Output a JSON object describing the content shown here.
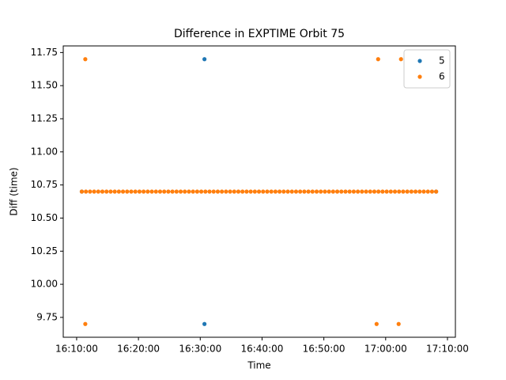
{
  "chart_data": {
    "type": "scatter",
    "title": "Difference in EXPTIME Orbit 75",
    "x_label": "Time",
    "y_label": "Diff (time)",
    "xlim": [
      "16:07:50",
      "17:11:17"
    ],
    "xticks": [
      "16:10:00",
      "16:20:00",
      "16:30:00",
      "16:40:00",
      "16:50:00",
      "17:00:00",
      "17:10:00"
    ],
    "ylim": [
      9.6,
      11.8
    ],
    "yticks": [
      9.75,
      {
        "value": 10,
        "label": "10.00"
      },
      10.25,
      {
        "value": 10.5,
        "label": "10.50"
      },
      10.75,
      {
        "value": 11,
        "label": "11.00"
      },
      11.25,
      {
        "value": 11.5,
        "label": "11.50"
      },
      11.75
    ],
    "legend": "upper right",
    "series": [
      {
        "name": "5",
        "color": "#1f77b4",
        "x": [
          "16:10:50",
          "16:30:41",
          "16:30:41",
          "17:08:10"
        ],
        "values": [
          10.7,
          11.7,
          9.7,
          10.7
        ]
      },
      {
        "name": "6",
        "color": "#ff7f0e",
        "x": [
          "16:10:50",
          "16:11:30",
          "16:12:10",
          "16:12:50",
          "16:13:30",
          "16:14:10",
          "16:14:50",
          "16:15:30",
          "16:16:10",
          "16:16:50",
          "16:17:30",
          "16:18:10",
          "16:18:50",
          "16:19:30",
          "16:20:10",
          "16:20:50",
          "16:21:30",
          "16:22:10",
          "16:22:50",
          "16:23:30",
          "16:24:10",
          "16:24:50",
          "16:25:30",
          "16:26:10",
          "16:26:50",
          "16:27:30",
          "16:28:10",
          "16:28:50",
          "16:29:30",
          "16:30:10",
          "16:30:50",
          "16:31:30",
          "16:32:10",
          "16:32:50",
          "16:33:30",
          "16:34:10",
          "16:34:50",
          "16:35:30",
          "16:36:10",
          "16:36:50",
          "16:37:30",
          "16:38:10",
          "16:38:50",
          "16:39:30",
          "16:40:10",
          "16:40:50",
          "16:41:30",
          "16:42:10",
          "16:42:50",
          "16:43:30",
          "16:44:10",
          "16:44:50",
          "16:45:30",
          "16:46:10",
          "16:46:50",
          "16:47:30",
          "16:48:10",
          "16:48:50",
          "16:49:30",
          "16:50:10",
          "16:50:50",
          "16:51:30",
          "16:52:10",
          "16:52:50",
          "16:53:30",
          "16:54:10",
          "16:54:50",
          "16:55:30",
          "16:56:10",
          "16:56:50",
          "16:57:30",
          "16:58:10",
          "16:58:50",
          "16:59:30",
          "17:00:10",
          "17:00:50",
          "17:01:30",
          "17:02:10",
          "17:02:50",
          "17:03:30",
          "17:04:10",
          "17:04:50",
          "17:05:30",
          "17:06:10",
          "17:06:50",
          "17:07:30",
          "17:08:10",
          "16:11:24",
          "16:11:24",
          "16:58:47",
          "16:58:32",
          "17:02:06",
          "17:02:29"
        ],
        "values": [
          10.7,
          10.7,
          10.7,
          10.7,
          10.7,
          10.7,
          10.7,
          10.7,
          10.7,
          10.7,
          10.7,
          10.7,
          10.7,
          10.7,
          10.7,
          10.7,
          10.7,
          10.7,
          10.7,
          10.7,
          10.7,
          10.7,
          10.7,
          10.7,
          10.7,
          10.7,
          10.7,
          10.7,
          10.7,
          10.7,
          10.7,
          10.7,
          10.7,
          10.7,
          10.7,
          10.7,
          10.7,
          10.7,
          10.7,
          10.7,
          10.7,
          10.7,
          10.7,
          10.7,
          10.7,
          10.7,
          10.7,
          10.7,
          10.7,
          10.7,
          10.7,
          10.7,
          10.7,
          10.7,
          10.7,
          10.7,
          10.7,
          10.7,
          10.7,
          10.7,
          10.7,
          10.7,
          10.7,
          10.7,
          10.7,
          10.7,
          10.7,
          10.7,
          10.7,
          10.7,
          10.7,
          10.7,
          10.7,
          10.7,
          10.7,
          10.7,
          10.7,
          10.7,
          10.7,
          10.7,
          10.7,
          10.7,
          10.7,
          10.7,
          10.7,
          10.7,
          10.7,
          11.7,
          9.7,
          11.7,
          9.7,
          9.7,
          11.7
        ]
      }
    ]
  }
}
